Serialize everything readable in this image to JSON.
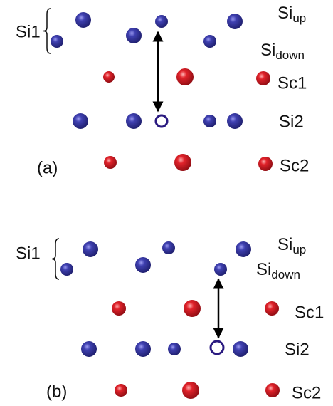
{
  "panels": [
    {
      "label": "(a)",
      "si1": "Si1",
      "si_up": {
        "base": "Si",
        "sub": "up"
      },
      "si_down": {
        "base": "Si",
        "sub": "down"
      },
      "sc1": "Sc1",
      "si2": "Si2",
      "sc2": "Sc2"
    },
    {
      "label": "(b)",
      "si1": "Si1",
      "si_up": {
        "base": "Si",
        "sub": "up"
      },
      "si_down": {
        "base": "Si",
        "sub": "down"
      },
      "sc1": "Sc1",
      "si2": "Si2",
      "sc2": "Sc2"
    }
  ]
}
